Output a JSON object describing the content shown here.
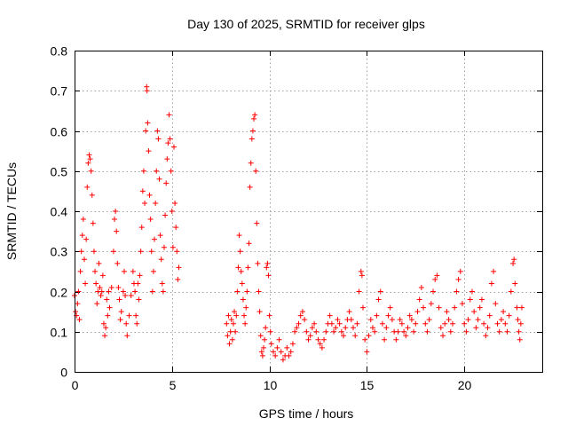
{
  "chart_data": {
    "type": "scatter",
    "title": "Day 130 of 2025, SRMTID for receiver glps",
    "xlabel": "GPS time / hours",
    "ylabel": "SRMTID / TECUs",
    "xlim": [
      0,
      24
    ],
    "ylim": [
      0,
      0.8
    ],
    "xticks": [
      0,
      5,
      10,
      15,
      20
    ],
    "yticks": [
      0,
      0.1,
      0.2,
      0.3,
      0.4,
      0.5,
      0.6,
      0.7,
      0.8
    ],
    "ytick_labels": [
      "0",
      "0.1",
      "0.2",
      "0.3",
      "0.4",
      "0.5",
      "0.6",
      "0.7",
      "0.8"
    ],
    "grid": true,
    "marker": "+",
    "color": "#ff0000",
    "series": [
      {
        "name": "SRMTID",
        "points": [
          [
            0.0,
            0.19
          ],
          [
            0.05,
            0.15
          ],
          [
            0.1,
            0.14
          ],
          [
            0.15,
            0.17
          ],
          [
            0.2,
            0.2
          ],
          [
            0.25,
            0.13
          ],
          [
            0.3,
            0.25
          ],
          [
            0.35,
            0.3
          ],
          [
            0.4,
            0.34
          ],
          [
            0.45,
            0.38
          ],
          [
            0.5,
            0.28
          ],
          [
            0.55,
            0.22
          ],
          [
            0.6,
            0.33
          ],
          [
            0.65,
            0.46
          ],
          [
            0.7,
            0.52
          ],
          [
            0.75,
            0.54
          ],
          [
            0.8,
            0.53
          ],
          [
            0.85,
            0.5
          ],
          [
            0.9,
            0.44
          ],
          [
            0.95,
            0.37
          ],
          [
            1.0,
            0.3
          ],
          [
            1.05,
            0.25
          ],
          [
            1.1,
            0.22
          ],
          [
            1.15,
            0.17
          ],
          [
            1.2,
            0.2
          ],
          [
            1.25,
            0.27
          ],
          [
            1.3,
            0.21
          ],
          [
            1.35,
            0.19
          ],
          [
            1.4,
            0.2
          ],
          [
            1.45,
            0.24
          ],
          [
            1.5,
            0.12
          ],
          [
            1.55,
            0.09
          ],
          [
            1.6,
            0.11
          ],
          [
            1.65,
            0.18
          ],
          [
            1.7,
            0.14
          ],
          [
            1.75,
            0.2
          ],
          [
            1.8,
            0.16
          ],
          [
            1.9,
            0.21
          ],
          [
            2.0,
            0.3
          ],
          [
            2.05,
            0.38
          ],
          [
            2.1,
            0.4
          ],
          [
            2.15,
            0.35
          ],
          [
            2.2,
            0.27
          ],
          [
            2.25,
            0.21
          ],
          [
            2.3,
            0.18
          ],
          [
            2.35,
            0.13
          ],
          [
            2.4,
            0.15
          ],
          [
            2.5,
            0.2
          ],
          [
            2.55,
            0.25
          ],
          [
            2.6,
            0.19
          ],
          [
            2.65,
            0.12
          ],
          [
            2.7,
            0.09
          ],
          [
            2.8,
            0.14
          ],
          [
            2.9,
            0.19
          ],
          [
            3.0,
            0.25
          ],
          [
            3.05,
            0.22
          ],
          [
            3.1,
            0.2
          ],
          [
            3.15,
            0.14
          ],
          [
            3.2,
            0.12
          ],
          [
            3.25,
            0.22
          ],
          [
            3.3,
            0.18
          ],
          [
            3.35,
            0.24
          ],
          [
            3.4,
            0.3
          ],
          [
            3.45,
            0.36
          ],
          [
            3.5,
            0.45
          ],
          [
            3.55,
            0.5
          ],
          [
            3.6,
            0.42
          ],
          [
            3.65,
            0.6
          ],
          [
            3.7,
            0.71
          ],
          [
            3.72,
            0.7
          ],
          [
            3.75,
            0.62
          ],
          [
            3.8,
            0.55
          ],
          [
            3.85,
            0.44
          ],
          [
            3.9,
            0.38
          ],
          [
            3.95,
            0.3
          ],
          [
            4.0,
            0.2
          ],
          [
            4.05,
            0.25
          ],
          [
            4.1,
            0.33
          ],
          [
            4.15,
            0.42
          ],
          [
            4.2,
            0.5
          ],
          [
            4.25,
            0.6
          ],
          [
            4.3,
            0.58
          ],
          [
            4.35,
            0.48
          ],
          [
            4.4,
            0.34
          ],
          [
            4.45,
            0.28
          ],
          [
            4.5,
            0.22
          ],
          [
            4.55,
            0.2
          ],
          [
            4.6,
            0.31
          ],
          [
            4.65,
            0.39
          ],
          [
            4.7,
            0.47
          ],
          [
            4.75,
            0.53
          ],
          [
            4.8,
            0.57
          ],
          [
            4.85,
            0.64
          ],
          [
            4.9,
            0.58
          ],
          [
            4.95,
            0.5
          ],
          [
            5.0,
            0.4
          ],
          [
            5.05,
            0.31
          ],
          [
            5.1,
            0.56
          ],
          [
            5.15,
            0.42
          ],
          [
            5.2,
            0.36
          ],
          [
            5.25,
            0.3
          ],
          [
            5.3,
            0.23
          ],
          [
            5.35,
            0.26
          ],
          [
            7.8,
            0.12
          ],
          [
            7.85,
            0.09
          ],
          [
            7.9,
            0.14
          ],
          [
            7.95,
            0.07
          ],
          [
            8.0,
            0.1
          ],
          [
            8.05,
            0.13
          ],
          [
            8.1,
            0.08
          ],
          [
            8.15,
            0.12
          ],
          [
            8.2,
            0.15
          ],
          [
            8.25,
            0.1
          ],
          [
            8.3,
            0.14
          ],
          [
            8.35,
            0.2
          ],
          [
            8.4,
            0.26
          ],
          [
            8.45,
            0.34
          ],
          [
            8.5,
            0.3
          ],
          [
            8.55,
            0.25
          ],
          [
            8.6,
            0.22
          ],
          [
            8.65,
            0.18
          ],
          [
            8.7,
            0.14
          ],
          [
            8.75,
            0.12
          ],
          [
            8.8,
            0.16
          ],
          [
            8.85,
            0.2
          ],
          [
            8.9,
            0.26
          ],
          [
            8.95,
            0.32
          ],
          [
            9.0,
            0.46
          ],
          [
            9.05,
            0.52
          ],
          [
            9.1,
            0.58
          ],
          [
            9.15,
            0.6
          ],
          [
            9.2,
            0.63
          ],
          [
            9.25,
            0.64
          ],
          [
            9.3,
            0.5
          ],
          [
            9.35,
            0.37
          ],
          [
            9.4,
            0.27
          ],
          [
            9.45,
            0.2
          ],
          [
            9.5,
            0.15
          ],
          [
            9.55,
            0.09
          ],
          [
            9.6,
            0.05
          ],
          [
            9.65,
            0.04
          ],
          [
            9.7,
            0.06
          ],
          [
            9.75,
            0.08
          ],
          [
            9.8,
            0.11
          ],
          [
            9.85,
            0.26
          ],
          [
            9.9,
            0.27
          ],
          [
            9.95,
            0.24
          ],
          [
            10.0,
            0.14
          ],
          [
            10.05,
            0.1
          ],
          [
            10.1,
            0.07
          ],
          [
            10.2,
            0.05
          ],
          [
            10.3,
            0.04
          ],
          [
            10.4,
            0.06
          ],
          [
            10.5,
            0.08
          ],
          [
            10.6,
            0.05
          ],
          [
            10.7,
            0.03
          ],
          [
            10.8,
            0.04
          ],
          [
            10.9,
            0.06
          ],
          [
            11.0,
            0.04
          ],
          [
            11.1,
            0.05
          ],
          [
            11.2,
            0.07
          ],
          [
            11.3,
            0.1
          ],
          [
            11.4,
            0.11
          ],
          [
            11.5,
            0.12
          ],
          [
            11.6,
            0.14
          ],
          [
            11.7,
            0.15
          ],
          [
            11.8,
            0.13
          ],
          [
            11.9,
            0.1
          ],
          [
            12.0,
            0.08
          ],
          [
            12.1,
            0.09
          ],
          [
            12.2,
            0.11
          ],
          [
            12.3,
            0.12
          ],
          [
            12.4,
            0.1
          ],
          [
            12.5,
            0.08
          ],
          [
            12.6,
            0.07
          ],
          [
            12.7,
            0.06
          ],
          [
            12.8,
            0.08
          ],
          [
            12.9,
            0.1
          ],
          [
            13.0,
            0.12
          ],
          [
            13.1,
            0.14
          ],
          [
            13.2,
            0.12
          ],
          [
            13.3,
            0.1
          ],
          [
            13.4,
            0.11
          ],
          [
            13.5,
            0.13
          ],
          [
            13.6,
            0.12
          ],
          [
            13.7,
            0.1
          ],
          [
            13.8,
            0.09
          ],
          [
            13.9,
            0.11
          ],
          [
            14.0,
            0.13
          ],
          [
            14.1,
            0.15
          ],
          [
            14.2,
            0.13
          ],
          [
            14.3,
            0.11
          ],
          [
            14.4,
            0.09
          ],
          [
            14.5,
            0.12
          ],
          [
            14.6,
            0.2
          ],
          [
            14.7,
            0.25
          ],
          [
            14.75,
            0.24
          ],
          [
            14.8,
            0.16
          ],
          [
            14.9,
            0.08
          ],
          [
            15.0,
            0.05
          ],
          [
            15.1,
            0.09
          ],
          [
            15.2,
            0.13
          ],
          [
            15.3,
            0.11
          ],
          [
            15.4,
            0.1
          ],
          [
            15.5,
            0.14
          ],
          [
            15.6,
            0.18
          ],
          [
            15.7,
            0.2
          ],
          [
            15.8,
            0.12
          ],
          [
            15.9,
            0.08
          ],
          [
            16.0,
            0.11
          ],
          [
            16.1,
            0.14
          ],
          [
            16.2,
            0.16
          ],
          [
            16.3,
            0.13
          ],
          [
            16.4,
            0.1
          ],
          [
            16.5,
            0.08
          ],
          [
            16.6,
            0.1
          ],
          [
            16.7,
            0.13
          ],
          [
            16.8,
            0.12
          ],
          [
            16.9,
            0.1
          ],
          [
            17.0,
            0.09
          ],
          [
            17.1,
            0.11
          ],
          [
            17.2,
            0.14
          ],
          [
            17.3,
            0.13
          ],
          [
            17.4,
            0.1
          ],
          [
            17.5,
            0.12
          ],
          [
            17.6,
            0.15
          ],
          [
            17.7,
            0.18
          ],
          [
            17.8,
            0.21
          ],
          [
            17.9,
            0.16
          ],
          [
            18.0,
            0.12
          ],
          [
            18.1,
            0.1
          ],
          [
            18.2,
            0.13
          ],
          [
            18.3,
            0.17
          ],
          [
            18.4,
            0.2
          ],
          [
            18.5,
            0.23
          ],
          [
            18.6,
            0.24
          ],
          [
            18.7,
            0.16
          ],
          [
            18.8,
            0.11
          ],
          [
            18.9,
            0.09
          ],
          [
            19.0,
            0.12
          ],
          [
            19.1,
            0.15
          ],
          [
            19.2,
            0.13
          ],
          [
            19.3,
            0.1
          ],
          [
            19.4,
            0.12
          ],
          [
            19.5,
            0.16
          ],
          [
            19.6,
            0.2
          ],
          [
            19.7,
            0.23
          ],
          [
            19.8,
            0.25
          ],
          [
            19.9,
            0.17
          ],
          [
            20.0,
            0.12
          ],
          [
            20.1,
            0.1
          ],
          [
            20.2,
            0.13
          ],
          [
            20.3,
            0.18
          ],
          [
            20.4,
            0.2
          ],
          [
            20.5,
            0.15
          ],
          [
            20.6,
            0.11
          ],
          [
            20.7,
            0.13
          ],
          [
            20.8,
            0.16
          ],
          [
            20.9,
            0.18
          ],
          [
            21.0,
            0.12
          ],
          [
            21.1,
            0.09
          ],
          [
            21.2,
            0.11
          ],
          [
            21.3,
            0.14
          ],
          [
            21.4,
            0.22
          ],
          [
            21.5,
            0.25
          ],
          [
            21.6,
            0.17
          ],
          [
            21.7,
            0.12
          ],
          [
            21.8,
            0.1
          ],
          [
            21.9,
            0.13
          ],
          [
            22.0,
            0.15
          ],
          [
            22.1,
            0.12
          ],
          [
            22.2,
            0.1
          ],
          [
            22.3,
            0.14
          ],
          [
            22.4,
            0.2
          ],
          [
            22.5,
            0.27
          ],
          [
            22.55,
            0.28
          ],
          [
            22.6,
            0.22
          ],
          [
            22.7,
            0.16
          ],
          [
            22.75,
            0.13
          ],
          [
            22.8,
            0.1
          ],
          [
            22.85,
            0.08
          ],
          [
            22.9,
            0.12
          ],
          [
            22.95,
            0.16
          ]
        ]
      }
    ]
  }
}
